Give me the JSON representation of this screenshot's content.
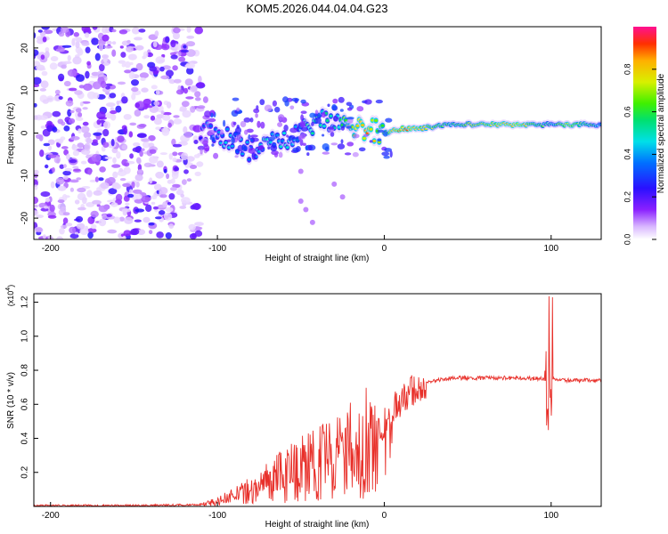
{
  "title": "KOM5.2026.044.04.04.G23",
  "chart_data": [
    {
      "type": "heatmap",
      "title": "KOM5.2026.044.04.04.G23",
      "xlabel": "Height of straight line (km)",
      "ylabel": "Frequency (Hz)",
      "xlim": [
        -210,
        130
      ],
      "ylim": [
        -25,
        25
      ],
      "xticks": [
        -200,
        -100,
        0,
        100
      ],
      "yticks": [
        -20,
        -10,
        0,
        10,
        20
      ],
      "colorbar": {
        "label": "Normalized spectral amplitude",
        "range": [
          0.0,
          1.0
        ],
        "ticks": [
          0.0,
          0.2,
          0.4,
          0.6,
          0.8
        ],
        "colormap": "rainbow"
      },
      "ridge": {
        "x": [
          -110,
          -100,
          -90,
          -80,
          -70,
          -60,
          -50,
          -40,
          -30,
          -20,
          -10,
          0,
          10,
          20,
          40,
          60,
          80,
          95,
          100,
          110,
          130
        ],
        "y": [
          1,
          0,
          -2,
          -4,
          -1,
          -2,
          1,
          3,
          2,
          1,
          1,
          0,
          1,
          1,
          2,
          2,
          2,
          2,
          2,
          2,
          2
        ],
        "amplitude": [
          0.3,
          0.4,
          0.45,
          0.4,
          0.5,
          0.45,
          0.5,
          0.55,
          0.5,
          0.75,
          0.9,
          0.7,
          0.95,
          0.8,
          0.6,
          0.75,
          0.85,
          0.6,
          0.5,
          0.8,
          0.5
        ]
      }
    },
    {
      "type": "line",
      "xlabel": "Height of straight line (km)",
      "ylabel": "SNR (10 * v/v)",
      "scale_label": "(x10",
      "scale_exp": "4",
      "scale_close": ")",
      "xlim": [
        -210,
        130
      ],
      "ylim": [
        0,
        1.25
      ],
      "xticks": [
        -200,
        -100,
        0,
        100
      ],
      "yticks": [
        0.2,
        0.4,
        0.6,
        0.8,
        1.0,
        1.2
      ],
      "series": [
        {
          "name": "SNR",
          "color": "#e8302a",
          "x": [
            -210,
            -150,
            -110,
            -100,
            -90,
            -80,
            -70,
            -60,
            -50,
            -40,
            -30,
            -20,
            -10,
            0,
            5,
            10,
            15,
            20,
            30,
            40,
            60,
            80,
            95,
            100,
            105,
            110,
            130
          ],
          "y": [
            0.005,
            0.005,
            0.01,
            0.03,
            0.06,
            0.1,
            0.14,
            0.18,
            0.22,
            0.26,
            0.3,
            0.33,
            0.38,
            0.5,
            0.56,
            0.62,
            0.67,
            0.71,
            0.74,
            0.755,
            0.755,
            0.755,
            0.75,
            0.75,
            0.74,
            0.74,
            0.74
          ]
        }
      ]
    }
  ]
}
